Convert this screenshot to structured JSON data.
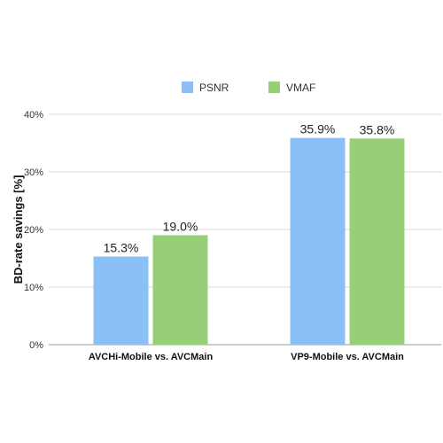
{
  "chart_data": {
    "type": "bar",
    "title": "",
    "xlabel": "",
    "ylabel": "BD-rate savings [%]",
    "ylim": [
      0,
      40
    ],
    "yticks": [
      0,
      10,
      20,
      30,
      40
    ],
    "ytick_suffix": "%",
    "grid": true,
    "legend_position": "top-center",
    "categories": [
      "AVCHi-Mobile vs. AVCMain",
      "VP9-Mobile vs. AVCMain"
    ],
    "series": [
      {
        "name": "PSNR",
        "color": "#8AC0F6",
        "values": [
          15.3,
          35.9
        ],
        "labels": [
          "15.3%",
          "35.9%"
        ]
      },
      {
        "name": "VMAF",
        "color": "#97CF78",
        "values": [
          19.0,
          35.8
        ],
        "labels": [
          "19.0%",
          "35.8%"
        ]
      }
    ]
  }
}
